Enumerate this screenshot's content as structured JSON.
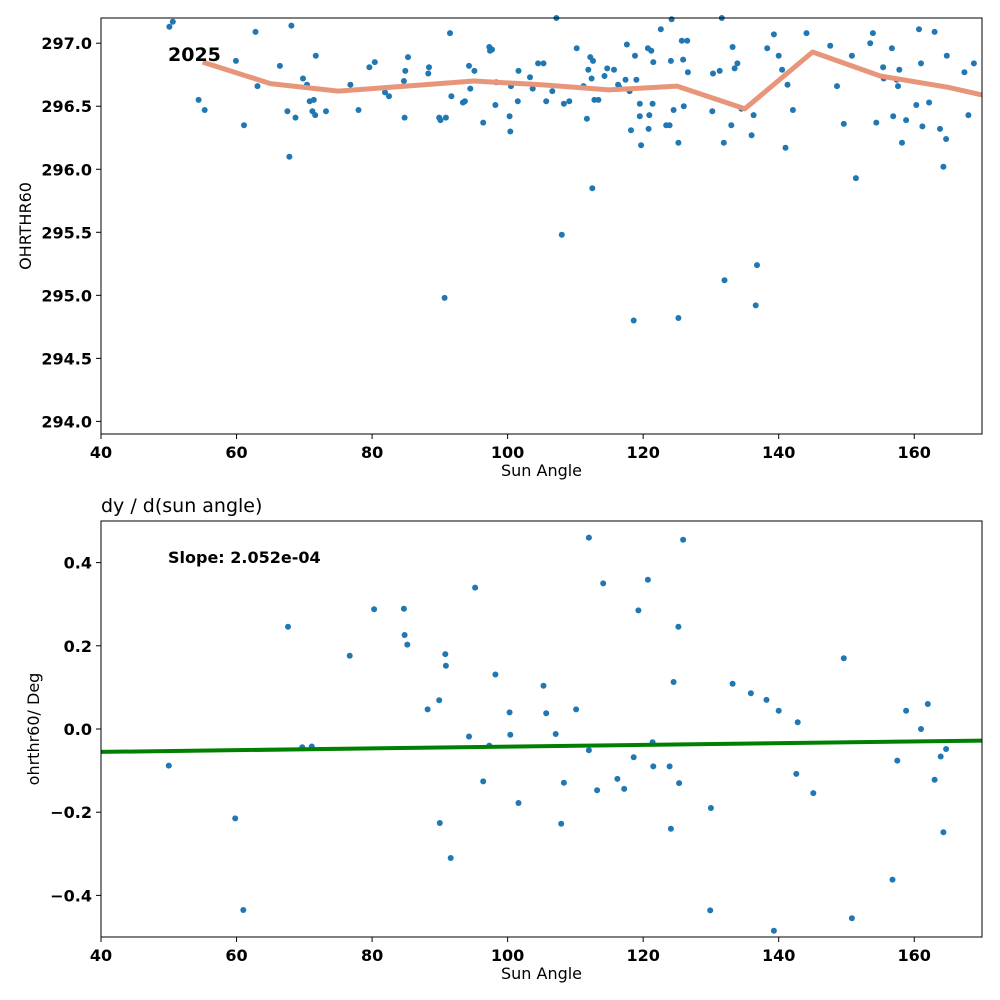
{
  "chart_data": [
    {
      "type": "scatter",
      "title": "",
      "xlabel": "Sun Angle",
      "ylabel": "OHRTHR60",
      "xlim": [
        40,
        170
      ],
      "ylim": [
        293.9,
        297.2
      ],
      "x_ticks": [
        40,
        60,
        80,
        100,
        120,
        140,
        160
      ],
      "y_ticks": [
        294.0,
        294.5,
        295.0,
        295.5,
        296.0,
        296.5,
        297.0
      ],
      "annotation": "2025",
      "point_color": "#1f77b4",
      "line_color": "#e8967a",
      "grid": false,
      "series": [
        {
          "type": "scatter",
          "points": [
            [
              50.1,
              297.13
            ],
            [
              50.6,
              297.17
            ],
            [
              54.4,
              296.55
            ],
            [
              55.3,
              296.47
            ],
            [
              59.9,
              296.86
            ],
            [
              61.1,
              296.35
            ],
            [
              62.8,
              297.09
            ],
            [
              63.1,
              296.66
            ],
            [
              66.4,
              296.82
            ],
            [
              67.5,
              296.46
            ],
            [
              67.8,
              296.1
            ],
            [
              68.1,
              297.14
            ],
            [
              68.7,
              296.41
            ],
            [
              69.8,
              296.72
            ],
            [
              70.4,
              296.67
            ],
            [
              70.8,
              296.54
            ],
            [
              71.2,
              296.46
            ],
            [
              71.4,
              296.55
            ],
            [
              71.6,
              296.43
            ],
            [
              71.7,
              296.9
            ],
            [
              73.2,
              296.46
            ],
            [
              76.8,
              296.67
            ],
            [
              78.0,
              296.47
            ],
            [
              79.6,
              296.81
            ],
            [
              80.4,
              296.85
            ],
            [
              81.9,
              296.61
            ],
            [
              82.5,
              296.58
            ],
            [
              84.7,
              296.7
            ],
            [
              84.8,
              296.41
            ],
            [
              84.9,
              296.78
            ],
            [
              85.3,
              296.89
            ],
            [
              88.3,
              296.76
            ],
            [
              88.4,
              296.81
            ],
            [
              89.9,
              296.41
            ],
            [
              90.1,
              296.39
            ],
            [
              90.7,
              294.98
            ],
            [
              90.9,
              296.41
            ],
            [
              91.5,
              297.08
            ],
            [
              91.7,
              296.58
            ],
            [
              93.4,
              296.53
            ],
            [
              93.7,
              296.54
            ],
            [
              94.3,
              296.82
            ],
            [
              94.5,
              296.64
            ],
            [
              95.1,
              296.78
            ],
            [
              96.4,
              296.37
            ],
            [
              97.3,
              296.97
            ],
            [
              97.4,
              296.94
            ],
            [
              97.7,
              296.95
            ],
            [
              98.2,
              296.51
            ],
            [
              98.3,
              296.69
            ],
            [
              100.3,
              296.42
            ],
            [
              100.4,
              296.3
            ],
            [
              100.5,
              296.66
            ],
            [
              101.5,
              296.54
            ],
            [
              101.6,
              296.78
            ],
            [
              103.3,
              296.73
            ],
            [
              103.7,
              296.64
            ],
            [
              104.5,
              296.84
            ],
            [
              105.3,
              296.84
            ],
            [
              105.7,
              296.54
            ],
            [
              106.6,
              296.62
            ],
            [
              107.2,
              297.2
            ],
            [
              108.0,
              295.48
            ],
            [
              108.3,
              296.52
            ],
            [
              109.1,
              296.54
            ],
            [
              110.2,
              296.96
            ],
            [
              111.2,
              296.66
            ],
            [
              111.7,
              296.4
            ],
            [
              111.9,
              296.79
            ],
            [
              112.2,
              296.89
            ],
            [
              112.4,
              296.72
            ],
            [
              112.5,
              295.85
            ],
            [
              112.6,
              296.86
            ],
            [
              112.8,
              296.55
            ],
            [
              113.4,
              296.55
            ],
            [
              114.3,
              296.74
            ],
            [
              114.7,
              296.8
            ],
            [
              115.7,
              296.79
            ],
            [
              116.3,
              296.67
            ],
            [
              116.5,
              296.65
            ],
            [
              117.4,
              296.71
            ],
            [
              117.6,
              296.99
            ],
            [
              118.0,
              296.62
            ],
            [
              118.2,
              296.31
            ],
            [
              118.6,
              294.8
            ],
            [
              118.8,
              296.9
            ],
            [
              119.0,
              296.71
            ],
            [
              119.5,
              296.42
            ],
            [
              119.5,
              296.52
            ],
            [
              119.7,
              296.19
            ],
            [
              120.7,
              296.96
            ],
            [
              120.8,
              296.32
            ],
            [
              120.9,
              296.43
            ],
            [
              121.2,
              296.94
            ],
            [
              121.4,
              296.52
            ],
            [
              121.5,
              296.85
            ],
            [
              122.6,
              297.11
            ],
            [
              123.4,
              296.35
            ],
            [
              123.9,
              296.35
            ],
            [
              124.1,
              296.86
            ],
            [
              124.2,
              297.19
            ],
            [
              124.5,
              296.47
            ],
            [
              125.2,
              296.21
            ],
            [
              125.2,
              294.82
            ],
            [
              125.7,
              297.02
            ],
            [
              125.9,
              296.87
            ],
            [
              126.0,
              296.5
            ],
            [
              126.5,
              297.02
            ],
            [
              126.6,
              296.77
            ],
            [
              130.2,
              296.46
            ],
            [
              130.3,
              296.76
            ],
            [
              131.3,
              296.78
            ],
            [
              131.6,
              297.2
            ],
            [
              131.9,
              296.21
            ],
            [
              132.0,
              295.12
            ],
            [
              133.0,
              296.35
            ],
            [
              133.2,
              296.97
            ],
            [
              133.5,
              296.8
            ],
            [
              133.9,
              296.84
            ],
            [
              134.5,
              296.48
            ],
            [
              136.0,
              296.27
            ],
            [
              136.3,
              296.43
            ],
            [
              136.6,
              294.92
            ],
            [
              136.8,
              295.24
            ],
            [
              138.3,
              296.96
            ],
            [
              139.3,
              297.07
            ],
            [
              140.0,
              296.9
            ],
            [
              140.5,
              296.79
            ],
            [
              141.0,
              296.17
            ],
            [
              141.3,
              296.67
            ],
            [
              142.1,
              296.47
            ],
            [
              144.1,
              297.08
            ],
            [
              147.6,
              296.98
            ],
            [
              148.6,
              296.66
            ],
            [
              149.6,
              296.36
            ],
            [
              150.8,
              296.9
            ],
            [
              151.4,
              295.93
            ],
            [
              153.5,
              297.0
            ],
            [
              153.9,
              297.08
            ],
            [
              154.4,
              296.37
            ],
            [
              155.4,
              296.81
            ],
            [
              155.5,
              296.72
            ],
            [
              156.7,
              296.96
            ],
            [
              156.9,
              296.42
            ],
            [
              157.4,
              296.71
            ],
            [
              157.6,
              296.66
            ],
            [
              157.8,
              296.79
            ],
            [
              158.2,
              296.21
            ],
            [
              158.8,
              296.39
            ],
            [
              160.3,
              296.51
            ],
            [
              160.7,
              297.11
            ],
            [
              161.0,
              296.84
            ],
            [
              161.2,
              296.34
            ],
            [
              162.2,
              296.53
            ],
            [
              163.0,
              297.09
            ],
            [
              163.8,
              296.32
            ],
            [
              164.3,
              296.02
            ],
            [
              164.7,
              296.24
            ],
            [
              164.8,
              296.9
            ],
            [
              167.4,
              296.77
            ],
            [
              168.0,
              296.43
            ],
            [
              168.8,
              296.84
            ]
          ]
        },
        {
          "type": "line",
          "points": [
            [
              55,
              296.85
            ],
            [
              65,
              296.68
            ],
            [
              75,
              296.62
            ],
            [
              85,
              296.66
            ],
            [
              95,
              296.7
            ],
            [
              105,
              296.67
            ],
            [
              115,
              296.63
            ],
            [
              125,
              296.66
            ],
            [
              135,
              296.48
            ],
            [
              145,
              296.93
            ],
            [
              155,
              296.74
            ],
            [
              165,
              296.65
            ],
            [
              170,
              296.59
            ]
          ]
        }
      ]
    },
    {
      "type": "scatter",
      "title": "dy / d(sun angle)",
      "xlabel": "Sun Angle",
      "ylabel": "ohrthr60/ Deg",
      "xlim": [
        40,
        170
      ],
      "ylim": [
        -0.5,
        0.5
      ],
      "x_ticks": [
        40,
        60,
        80,
        100,
        120,
        140,
        160
      ],
      "y_ticks": [
        -0.4,
        -0.2,
        0.0,
        0.2,
        0.4
      ],
      "annotation": "Slope: 2.052e-04",
      "point_color": "#1f77b4",
      "line_color": "#008000",
      "grid": false,
      "series": [
        {
          "type": "scatter",
          "points": [
            [
              50.0,
              -0.088
            ],
            [
              59.8,
              -0.215
            ],
            [
              61.0,
              -0.435
            ],
            [
              67.6,
              0.246
            ],
            [
              69.7,
              -0.044
            ],
            [
              71.1,
              -0.042
            ],
            [
              76.7,
              0.176
            ],
            [
              80.3,
              0.288
            ],
            [
              84.7,
              0.289
            ],
            [
              84.8,
              0.226
            ],
            [
              85.2,
              0.203
            ],
            [
              88.2,
              0.047
            ],
            [
              89.9,
              0.069
            ],
            [
              90.0,
              -0.226
            ],
            [
              90.8,
              0.18
            ],
            [
              90.9,
              0.152
            ],
            [
              91.6,
              -0.31
            ],
            [
              94.3,
              -0.018
            ],
            [
              95.2,
              0.34
            ],
            [
              96.4,
              -0.126
            ],
            [
              97.3,
              -0.04
            ],
            [
              98.2,
              0.131
            ],
            [
              100.3,
              0.04
            ],
            [
              100.4,
              -0.014
            ],
            [
              101.6,
              -0.178
            ],
            [
              105.3,
              0.104
            ],
            [
              105.7,
              0.038
            ],
            [
              107.1,
              -0.012
            ],
            [
              107.9,
              -0.228
            ],
            [
              108.3,
              -0.129
            ],
            [
              110.1,
              0.047
            ],
            [
              112.0,
              0.46
            ],
            [
              112.0,
              -0.051
            ],
            [
              113.2,
              -0.147
            ],
            [
              114.1,
              0.35
            ],
            [
              116.2,
              -0.12
            ],
            [
              117.2,
              -0.144
            ],
            [
              118.6,
              -0.068
            ],
            [
              119.3,
              0.285
            ],
            [
              120.7,
              0.359
            ],
            [
              121.4,
              -0.032
            ],
            [
              121.5,
              -0.09
            ],
            [
              123.9,
              -0.09
            ],
            [
              124.1,
              -0.24
            ],
            [
              124.5,
              0.113
            ],
            [
              125.2,
              0.246
            ],
            [
              125.3,
              -0.13
            ],
            [
              125.9,
              0.455
            ],
            [
              129.9,
              -0.436
            ],
            [
              130.0,
              -0.19
            ],
            [
              133.2,
              0.109
            ],
            [
              135.9,
              0.086
            ],
            [
              138.2,
              0.07
            ],
            [
              139.3,
              -0.485
            ],
            [
              140.0,
              0.044
            ],
            [
              142.6,
              -0.108
            ],
            [
              142.8,
              0.016
            ],
            [
              145.1,
              -0.154
            ],
            [
              149.6,
              0.17
            ],
            [
              150.8,
              -0.455
            ],
            [
              156.8,
              -0.362
            ],
            [
              157.5,
              -0.076
            ],
            [
              158.8,
              0.044
            ],
            [
              161.0,
              0.0
            ],
            [
              162.0,
              0.06
            ],
            [
              163.0,
              -0.122
            ],
            [
              163.9,
              -0.066
            ],
            [
              164.3,
              -0.248
            ],
            [
              164.7,
              -0.048
            ]
          ]
        },
        {
          "type": "line",
          "points": [
            [
              40,
              -0.055
            ],
            [
              170,
              -0.028
            ]
          ]
        }
      ]
    }
  ]
}
